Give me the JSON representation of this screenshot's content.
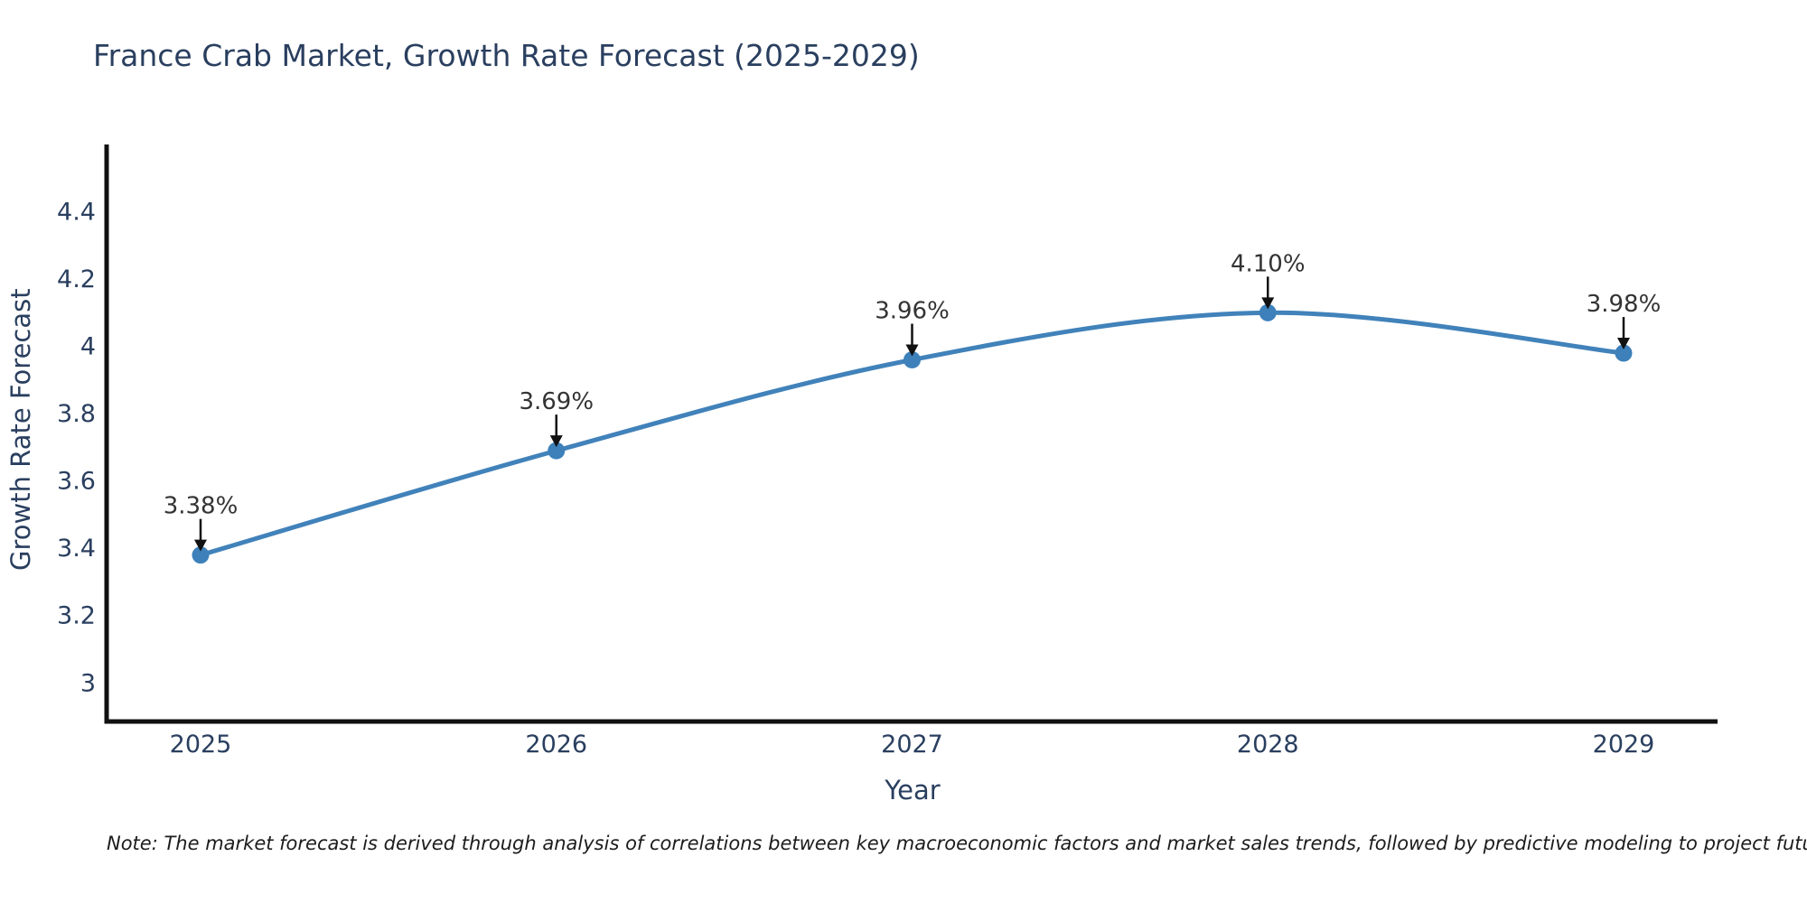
{
  "note": "Note: The market forecast is derived through analysis of correlations between key macroeconomic factors and market sales trends, followed by predictive modeling to project future sales",
  "chart_data": {
    "type": "line",
    "title": "France Crab Market, Growth Rate Forecast (2025-2029)",
    "xlabel": "Year",
    "ylabel": "Growth Rate Forecast",
    "x": [
      2025,
      2026,
      2027,
      2028,
      2029
    ],
    "x_tick_labels": [
      "2025",
      "2026",
      "2027",
      "2028",
      "2029"
    ],
    "values": [
      3.38,
      3.69,
      3.96,
      4.1,
      3.98
    ],
    "point_labels": [
      "3.38%",
      "3.69%",
      "3.96%",
      "4.10%",
      "3.98%"
    ],
    "y_ticks": [
      3,
      3.2,
      3.4,
      3.6,
      3.8,
      4,
      4.2,
      4.4
    ],
    "y_tick_labels": [
      "3",
      "3.2",
      "3.4",
      "3.6",
      "3.8",
      "4",
      "4.2",
      "4.4"
    ],
    "ylim": [
      2.88,
      4.6
    ],
    "line_shape": "spline",
    "grid": false,
    "legend": false,
    "colors": {
      "line": "#4182ba",
      "marker": "#3d80ba",
      "annotation_text": "#333333",
      "arrow": "#111111",
      "axis_spine": "#111111",
      "tick_text": "#2a3f5f",
      "title_text": "#2a3f5f"
    }
  }
}
